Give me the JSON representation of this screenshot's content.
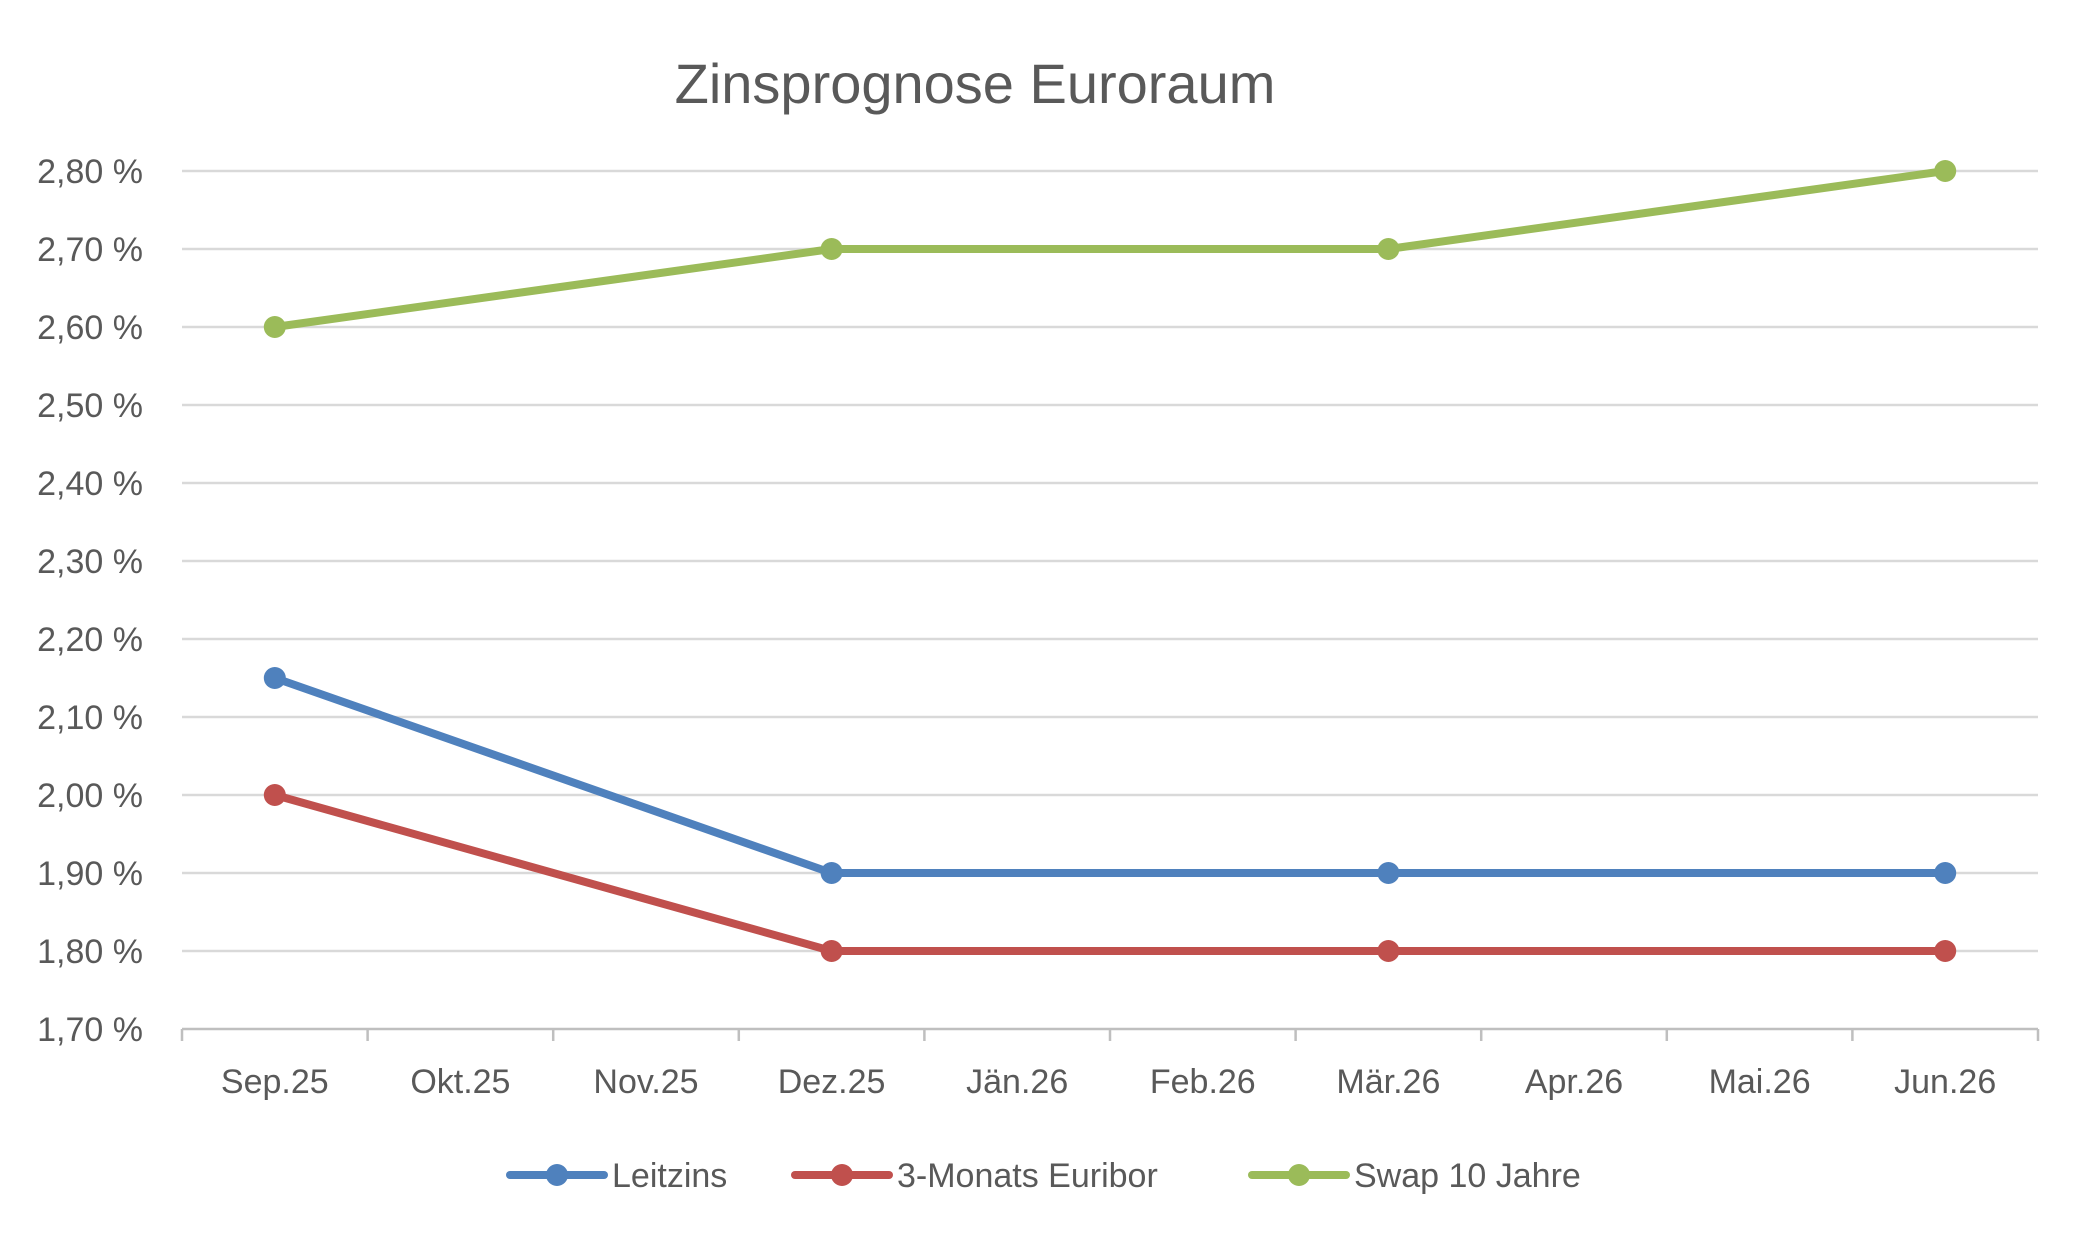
{
  "chart_data": {
    "type": "line",
    "title": "Zinsprognose Euroraum",
    "xlabel": "",
    "ylabel": "",
    "categories": [
      "Sep.25",
      "Okt.25",
      "Nov.25",
      "Dez.25",
      "Jän.26",
      "Feb.26",
      "Mär.26",
      "Apr.26",
      "Mai.26",
      "Jun.26"
    ],
    "ylim": [
      1.7,
      2.8
    ],
    "yticks": [
      "1,70 %",
      "1,80 %",
      "1,90 %",
      "2,00 %",
      "2,10 %",
      "2,20 %",
      "2,30 %",
      "2,40 %",
      "2,50 %",
      "2,60 %",
      "2,70 %",
      "2,80 %"
    ],
    "grid": true,
    "legend": "bottom",
    "series": [
      {
        "name": "Leitzins",
        "color": "#4F81BD",
        "points": [
          {
            "x": "Sep.25",
            "y": 2.15
          },
          {
            "x": "Dez.25",
            "y": 1.9
          },
          {
            "x": "Mär.26",
            "y": 1.9
          },
          {
            "x": "Jun.26",
            "y": 1.9
          }
        ]
      },
      {
        "name": "3-Monats Euribor",
        "color": "#C0504D",
        "points": [
          {
            "x": "Sep.25",
            "y": 2.0
          },
          {
            "x": "Dez.25",
            "y": 1.8
          },
          {
            "x": "Mär.26",
            "y": 1.8
          },
          {
            "x": "Jun.26",
            "y": 1.8
          }
        ]
      },
      {
        "name": "Swap 10 Jahre",
        "color": "#9BBB59",
        "points": [
          {
            "x": "Sep.25",
            "y": 2.6
          },
          {
            "x": "Dez.25",
            "y": 2.7
          },
          {
            "x": "Mär.26",
            "y": 2.7
          },
          {
            "x": "Jun.26",
            "y": 2.8
          }
        ]
      }
    ]
  }
}
